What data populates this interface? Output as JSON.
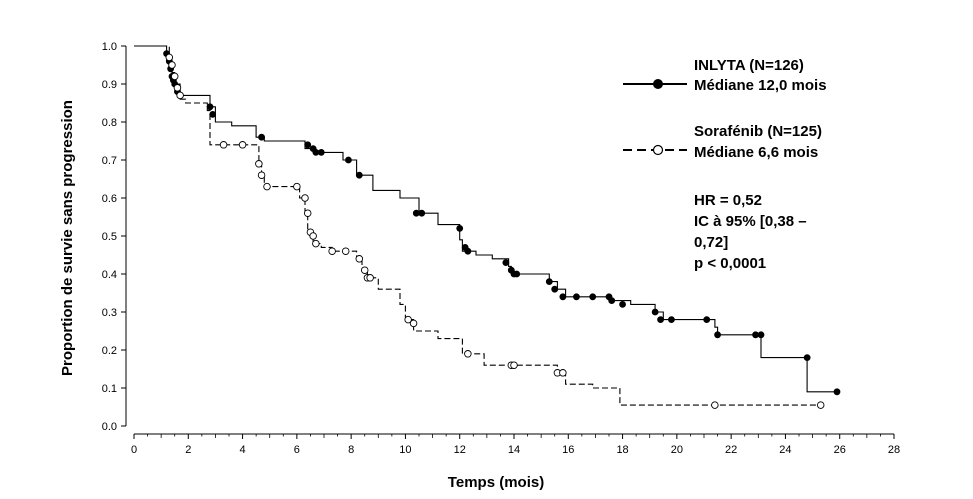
{
  "chart_data": {
    "type": "line",
    "chart_subtype": "kaplan-meier",
    "xlabel": "Temps (mois)",
    "ylabel": "Proportion de survie sans progression",
    "xlim": [
      0,
      28
    ],
    "ylim": [
      0,
      1
    ],
    "x_ticks": [
      0,
      2,
      4,
      6,
      8,
      10,
      12,
      14,
      16,
      18,
      20,
      22,
      24,
      26,
      28
    ],
    "y_ticks": [
      "0.0",
      "0.1",
      "0.2",
      "0.3",
      "0.4",
      "0.5",
      "0.6",
      "0.7",
      "0.8",
      "0.9",
      "1.0"
    ],
    "grid": false,
    "legend_position": "top-right",
    "series": [
      {
        "name": "INLYTA (N=126)",
        "median_label": "Médiane 12,0 mois",
        "line_style": "solid",
        "marker": "filled-circle",
        "color": "#000000",
        "steps": [
          [
            0,
            1.0
          ],
          [
            1.2,
            0.98
          ],
          [
            1.3,
            0.95
          ],
          [
            1.4,
            0.92
          ],
          [
            1.5,
            0.9
          ],
          [
            1.7,
            0.87
          ],
          [
            2.8,
            0.84
          ],
          [
            3.0,
            0.8
          ],
          [
            3.6,
            0.79
          ],
          [
            4.5,
            0.76
          ],
          [
            4.8,
            0.75
          ],
          [
            6.3,
            0.73
          ],
          [
            6.6,
            0.72
          ],
          [
            7.7,
            0.7
          ],
          [
            8.2,
            0.66
          ],
          [
            8.8,
            0.62
          ],
          [
            9.8,
            0.6
          ],
          [
            10.5,
            0.56
          ],
          [
            11.2,
            0.53
          ],
          [
            12.0,
            0.49
          ],
          [
            12.1,
            0.46
          ],
          [
            12.6,
            0.45
          ],
          [
            13.2,
            0.44
          ],
          [
            13.8,
            0.42
          ],
          [
            13.9,
            0.4
          ],
          [
            15.3,
            0.38
          ],
          [
            15.6,
            0.36
          ],
          [
            15.9,
            0.34
          ],
          [
            17.5,
            0.33
          ],
          [
            18.3,
            0.32
          ],
          [
            19.2,
            0.3
          ],
          [
            19.5,
            0.28
          ],
          [
            21.4,
            0.26
          ],
          [
            21.5,
            0.24
          ],
          [
            23.1,
            0.18
          ],
          [
            24.8,
            0.09
          ],
          [
            25.9,
            0.09
          ]
        ],
        "censored": [
          [
            1.2,
            0.98
          ],
          [
            1.3,
            0.96
          ],
          [
            1.35,
            0.94
          ],
          [
            1.4,
            0.92
          ],
          [
            1.45,
            0.91
          ],
          [
            1.5,
            0.9
          ],
          [
            1.6,
            0.88
          ],
          [
            1.7,
            0.87
          ],
          [
            2.8,
            0.84
          ],
          [
            2.9,
            0.82
          ],
          [
            4.7,
            0.76
          ],
          [
            6.4,
            0.74
          ],
          [
            6.6,
            0.73
          ],
          [
            6.7,
            0.72
          ],
          [
            6.9,
            0.72
          ],
          [
            7.9,
            0.7
          ],
          [
            8.3,
            0.66
          ],
          [
            10.4,
            0.56
          ],
          [
            10.6,
            0.56
          ],
          [
            12.0,
            0.52
          ],
          [
            12.2,
            0.47
          ],
          [
            12.3,
            0.46
          ],
          [
            13.7,
            0.43
          ],
          [
            13.9,
            0.41
          ],
          [
            14.0,
            0.4
          ],
          [
            14.1,
            0.4
          ],
          [
            15.3,
            0.38
          ],
          [
            15.5,
            0.36
          ],
          [
            15.8,
            0.34
          ],
          [
            16.3,
            0.34
          ],
          [
            16.9,
            0.34
          ],
          [
            17.5,
            0.34
          ],
          [
            17.6,
            0.33
          ],
          [
            18.0,
            0.32
          ],
          [
            19.2,
            0.3
          ],
          [
            19.4,
            0.28
          ],
          [
            19.8,
            0.28
          ],
          [
            21.1,
            0.28
          ],
          [
            21.5,
            0.24
          ],
          [
            22.9,
            0.24
          ],
          [
            23.1,
            0.24
          ],
          [
            24.8,
            0.18
          ],
          [
            25.9,
            0.09
          ]
        ]
      },
      {
        "name": "Sorafénib (N=125)",
        "median_label": "Médiane 6,6 mois",
        "line_style": "dashed",
        "marker": "open-circle",
        "color": "#000000",
        "steps": [
          [
            0,
            1.0
          ],
          [
            1.3,
            0.97
          ],
          [
            1.4,
            0.93
          ],
          [
            1.5,
            0.9
          ],
          [
            1.6,
            0.88
          ],
          [
            1.7,
            0.86
          ],
          [
            1.9,
            0.85
          ],
          [
            2.7,
            0.83
          ],
          [
            2.8,
            0.74
          ],
          [
            4.6,
            0.69
          ],
          [
            4.7,
            0.66
          ],
          [
            4.8,
            0.63
          ],
          [
            6.1,
            0.6
          ],
          [
            6.3,
            0.56
          ],
          [
            6.4,
            0.51
          ],
          [
            6.5,
            0.5
          ],
          [
            6.6,
            0.48
          ],
          [
            6.9,
            0.47
          ],
          [
            7.3,
            0.46
          ],
          [
            8.2,
            0.44
          ],
          [
            8.4,
            0.41
          ],
          [
            8.6,
            0.39
          ],
          [
            9.0,
            0.36
          ],
          [
            9.8,
            0.32
          ],
          [
            10.0,
            0.28
          ],
          [
            10.3,
            0.25
          ],
          [
            11.2,
            0.23
          ],
          [
            12.1,
            0.19
          ],
          [
            12.9,
            0.16
          ],
          [
            15.6,
            0.14
          ],
          [
            15.9,
            0.11
          ],
          [
            16.9,
            0.1
          ],
          [
            17.9,
            0.055
          ],
          [
            25.3,
            0.055
          ]
        ],
        "censored": [
          [
            1.3,
            0.97
          ],
          [
            1.4,
            0.95
          ],
          [
            1.5,
            0.92
          ],
          [
            1.6,
            0.89
          ],
          [
            1.7,
            0.87
          ],
          [
            3.3,
            0.74
          ],
          [
            4.0,
            0.74
          ],
          [
            4.6,
            0.69
          ],
          [
            4.7,
            0.66
          ],
          [
            4.9,
            0.63
          ],
          [
            6.0,
            0.63
          ],
          [
            6.3,
            0.6
          ],
          [
            6.4,
            0.56
          ],
          [
            6.5,
            0.51
          ],
          [
            6.6,
            0.5
          ],
          [
            6.7,
            0.48
          ],
          [
            7.3,
            0.46
          ],
          [
            7.8,
            0.46
          ],
          [
            8.3,
            0.44
          ],
          [
            8.5,
            0.41
          ],
          [
            8.6,
            0.39
          ],
          [
            8.7,
            0.39
          ],
          [
            10.1,
            0.28
          ],
          [
            10.3,
            0.27
          ],
          [
            12.3,
            0.19
          ],
          [
            13.9,
            0.16
          ],
          [
            14.0,
            0.16
          ],
          [
            15.6,
            0.14
          ],
          [
            15.8,
            0.14
          ],
          [
            21.4,
            0.055
          ],
          [
            25.3,
            0.055
          ]
        ]
      }
    ],
    "annotations": [
      "HR = 0,52",
      "IC à 95% [0,38 –",
      "0,72]",
      "p < 0,0001"
    ]
  }
}
